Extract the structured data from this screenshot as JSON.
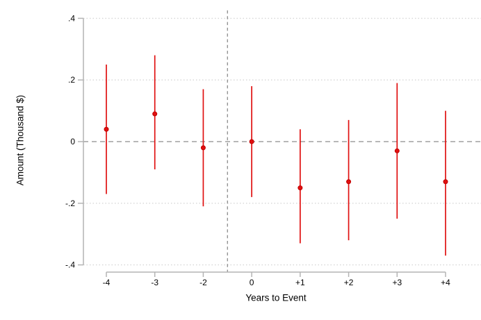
{
  "chart_data": {
    "type": "scatter",
    "subtype": "event-study coefficient plot with vertical confidence-interval spikes",
    "title": "",
    "xlabel": "Years to Event",
    "ylabel": "Amount (Thousand $)",
    "categories": [
      "-4",
      "-3",
      "-2",
      "0",
      "+1",
      "+2",
      "+3",
      "+4"
    ],
    "omitted_x_tick": "-1",
    "series": [
      {
        "name": "coefficient",
        "estimates": [
          0.04,
          0.09,
          -0.02,
          0.0,
          -0.15,
          -0.13,
          -0.03,
          -0.13
        ],
        "ci_low": [
          -0.17,
          -0.09,
          -0.21,
          -0.18,
          -0.33,
          -0.32,
          -0.25,
          -0.37
        ],
        "ci_high": [
          0.25,
          0.28,
          0.17,
          0.18,
          0.04,
          0.07,
          0.19,
          0.1
        ]
      }
    ],
    "ylim": [
      -0.4,
      0.4
    ],
    "y_ticks": [
      {
        "label": ".4",
        "value": 0.4
      },
      {
        "label": ".2",
        "value": 0.2
      },
      {
        "label": "0",
        "value": 0.0
      },
      {
        "label": "-.2",
        "value": -0.2
      },
      {
        "label": "-.4",
        "value": -0.4
      }
    ],
    "grid": "light dotted horizontal lines at non-zero y ticks; dashed horizontal line at y = 0",
    "reference_line_vertical": {
      "between_categories": [
        "-2",
        "0"
      ]
    },
    "legend": "none",
    "colors": {
      "series": "#e01010",
      "marker_edge": "#c00000",
      "axis_line": "#b4b4b4",
      "grid_line": "#d6d6d6",
      "reference_line": "#8c8c8c",
      "text": "#000000",
      "background": "#ffffff"
    }
  }
}
